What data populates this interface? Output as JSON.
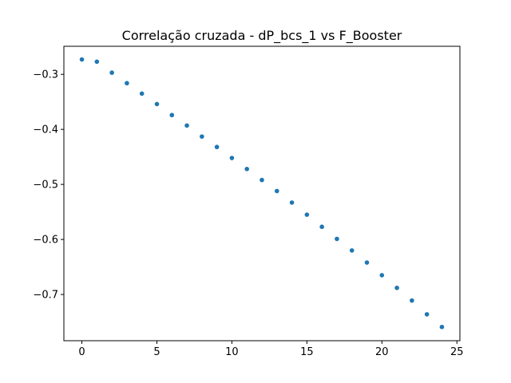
{
  "chart_data": {
    "type": "scatter",
    "title": "Correlação cruzada - dP_bcs_1 vs F_Booster",
    "xlabel": "",
    "ylabel": "",
    "xlim": [
      -1.2,
      25.2
    ],
    "ylim": [
      -0.784,
      -0.249
    ],
    "grid": false,
    "x_ticks": [
      0,
      5,
      10,
      15,
      20,
      25
    ],
    "x_tick_labels": [
      "0",
      "5",
      "10",
      "15",
      "20",
      "25"
    ],
    "y_ticks": [
      -0.3,
      -0.4,
      -0.5,
      -0.6,
      -0.7
    ],
    "y_tick_labels": [
      "−0.3",
      "−0.4",
      "−0.5",
      "−0.6",
      "−0.7"
    ],
    "series": [
      {
        "color": "#1f77b4",
        "x": [
          0,
          1,
          2,
          3,
          4,
          5,
          6,
          7,
          8,
          9,
          10,
          11,
          12,
          13,
          14,
          15,
          16,
          17,
          18,
          19,
          20,
          21,
          22,
          23,
          24
        ],
        "y": [
          -0.273,
          -0.277,
          -0.297,
          -0.316,
          -0.335,
          -0.354,
          -0.374,
          -0.393,
          -0.413,
          -0.432,
          -0.452,
          -0.472,
          -0.492,
          -0.512,
          -0.533,
          -0.555,
          -0.577,
          -0.599,
          -0.62,
          -0.642,
          -0.665,
          -0.688,
          -0.711,
          -0.736,
          -0.759
        ]
      }
    ]
  }
}
